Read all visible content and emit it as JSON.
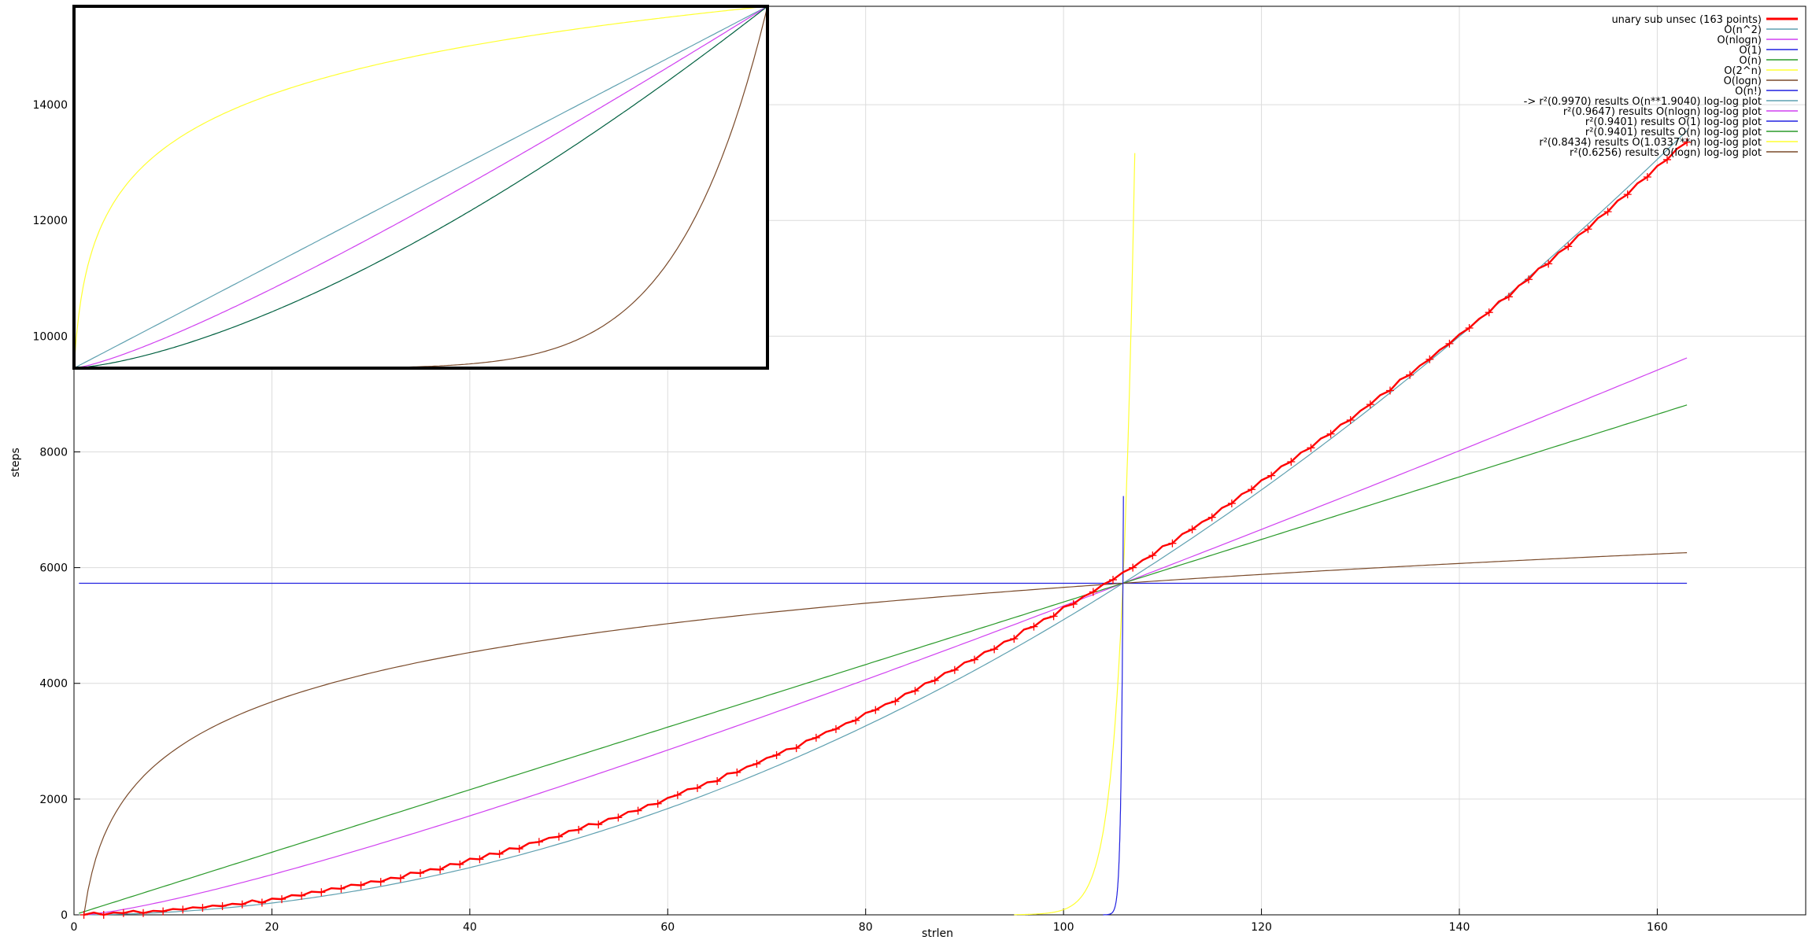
{
  "chart_data": {
    "type": "line",
    "xlabel": "strlen",
    "ylabel": "steps",
    "xlim": [
      0,
      175
    ],
    "ylim": [
      0,
      15700
    ],
    "xticks": [
      0,
      20,
      40,
      60,
      80,
      100,
      120,
      140,
      160
    ],
    "yticks": [
      0,
      2000,
      4000,
      6000,
      8000,
      10000,
      12000,
      14000
    ],
    "grid": true,
    "legend_position": "top-right",
    "inset": {
      "description_position": "top-left",
      "shows": "normalized curves from x=0 to x=163"
    },
    "series": [
      {
        "name": "unary sub unsec (163 points)",
        "color": "#ff0000",
        "style": "steps-with-markers",
        "formula": "a*x^1.904",
        "x_range": [
          1,
          163
        ],
        "y_at_x": {
          "1": 0,
          "20": 228,
          "40": 835,
          "60": 1837,
          "80": 3245,
          "100": 5050,
          "106": 5680,
          "120": 7270,
          "140": 9890,
          "163": 13360
        }
      },
      {
        "name": "O(n^2)",
        "color": "#5fa0b0",
        "formula": "c*x^2",
        "x_range": [
          0,
          163
        ],
        "y_at_x": {
          "0": 0,
          "106": 5730,
          "163": 13560
        }
      },
      {
        "name": "O(nlogn)",
        "color": "#d040f0",
        "formula": "c*x*ln(x)",
        "x_range": [
          1,
          163
        ],
        "y_at_x": {
          "106": 5730,
          "163": 9690
        }
      },
      {
        "name": "O(1)",
        "color": "#2020e0",
        "formula": "const",
        "x_range": [
          0,
          163
        ],
        "y_at_x": {
          "0": 5730,
          "163": 5730
        }
      },
      {
        "name": "O(n)",
        "color": "#2a9a2a",
        "formula": "c*x",
        "x_range": [
          0,
          163
        ],
        "y_at_x": {
          "0": 0,
          "106": 5730,
          "163": 8810
        }
      },
      {
        "name": "O(2^n)",
        "color": "#ffff30",
        "formula": "c*2^x",
        "x_range": [
          95,
          107
        ],
        "y_at_x": {
          "106": 5730
        }
      },
      {
        "name": "O(logn)",
        "color": "#7a4a2a",
        "formula": "c*ln(x)",
        "x_range": [
          1,
          163
        ],
        "y_at_x": {
          "106": 5730,
          "163": 6260
        }
      },
      {
        "name": "O(n!)",
        "color": "#2020e0",
        "formula": "c*x!",
        "x_range": [
          104,
          106
        ],
        "y_at_x": {
          "106": 5730
        }
      }
    ],
    "fit_results": [
      {
        "text": "-> r²(0.9970) results O(n**1.9040) log-log plot",
        "color": "#5fa0b0"
      },
      {
        "text": "r²(0.9647) results O(nlogn) log-log plot",
        "color": "#d040f0"
      },
      {
        "text": "r²(0.9401) results O(1) log-log plot",
        "color": "#2020e0"
      },
      {
        "text": "r²(0.9401) results O(n) log-log plot",
        "color": "#2a9a2a"
      },
      {
        "text": "r²(0.8434) results O(1.0337**n) log-log plot",
        "color": "#ffff30"
      },
      {
        "text": "r²(0.6256) results O(logn) log-log plot",
        "color": "#7a4a2a"
      }
    ]
  }
}
